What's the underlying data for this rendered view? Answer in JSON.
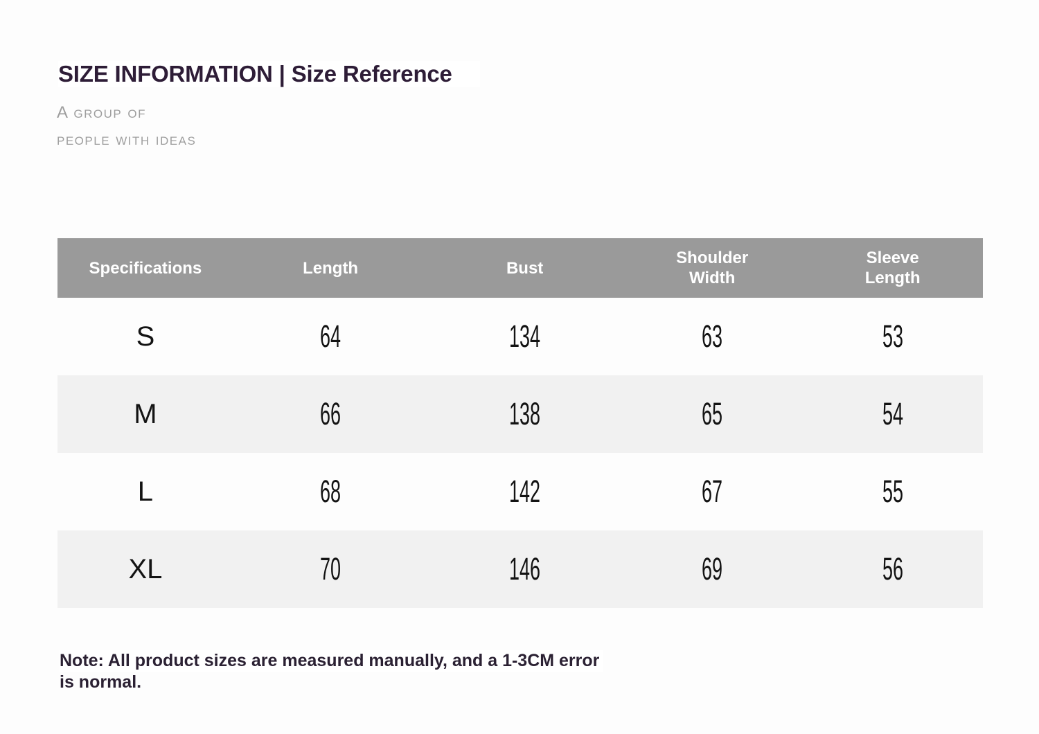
{
  "header": {
    "title_main": "SIZE INFORMATION",
    "title_divider": "|",
    "title_sub": "Size Reference",
    "tagline_line1": "A group of",
    "tagline_line2": "people with ideas"
  },
  "table": {
    "headers": [
      [
        "Specifications"
      ],
      [
        "Length"
      ],
      [
        "Bust"
      ],
      [
        "Shoulder",
        "Width"
      ],
      [
        "Sleeve",
        "Length"
      ]
    ],
    "rows": [
      [
        "S",
        "64",
        "134",
        "63",
        "53"
      ],
      [
        "M",
        "66",
        "138",
        "65",
        "54"
      ],
      [
        "L",
        "68",
        "142",
        "67",
        "55"
      ],
      [
        "XL",
        "70",
        "146",
        "69",
        "56"
      ]
    ]
  },
  "note": {
    "line1": "Note: All product sizes are measured manually, and a 1-3CM error",
    "line2": "is normal."
  },
  "colors": {
    "title": "#2e1d37",
    "tagline": "#9e9e9e",
    "table_header_bg": "#9a9a9a",
    "table_header_text": "#ffffff",
    "row_alt_bg": "#f1f1f1",
    "cell_text": "#131313",
    "note": "#2b2133"
  }
}
